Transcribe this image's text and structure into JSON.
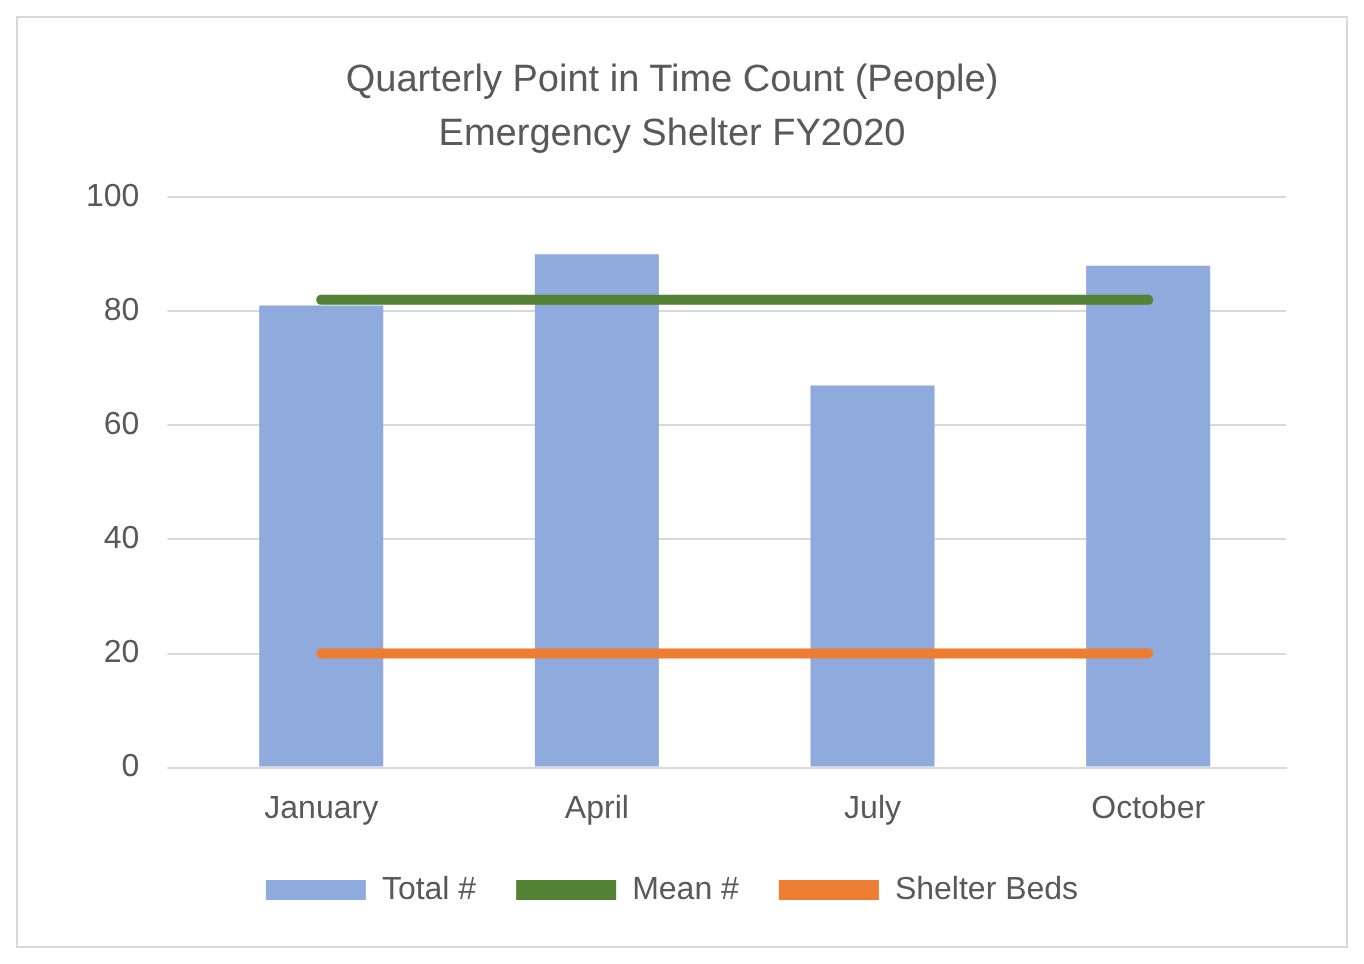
{
  "chart_data": {
    "type": "bar",
    "title": "Quarterly Point in Time Count (People)",
    "subtitle": "Emergency Shelter FY2020",
    "categories": [
      "January",
      "April",
      "July",
      "October"
    ],
    "series": [
      {
        "name": "Total #",
        "color": "#8faadc",
        "values": [
          81,
          90,
          67,
          88
        ]
      },
      {
        "name": "Mean #",
        "type": "line",
        "color": "#548235",
        "values": [
          82,
          82,
          82,
          82
        ]
      },
      {
        "name": "Shelter Beds",
        "type": "line",
        "color": "#ed7d31",
        "values": [
          20,
          20,
          20,
          20
        ]
      }
    ],
    "ylim": [
      0,
      100
    ],
    "yticks": [
      0,
      20,
      40,
      60,
      80,
      100
    ],
    "grid": "y",
    "legend": "bottom",
    "marker": "none"
  }
}
